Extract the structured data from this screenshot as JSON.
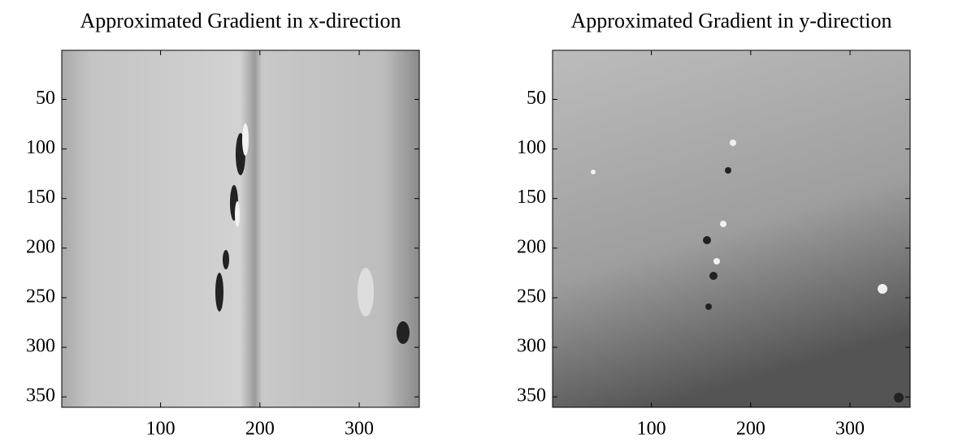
{
  "chart_data": [
    {
      "type": "image",
      "title": "Approximated Gradient in x-direction",
      "xlim": [
        0.5,
        360.5
      ],
      "ylim": [
        0.5,
        360.5
      ],
      "y_reversed": true,
      "xticks": [
        100,
        200,
        300
      ],
      "yticks": [
        50,
        100,
        150,
        200,
        250,
        300,
        350
      ]
    },
    {
      "type": "image",
      "title": "Approximated Gradient in y-direction",
      "xlim": [
        0.5,
        360.5
      ],
      "ylim": [
        0.5,
        360.5
      ],
      "y_reversed": true,
      "xticks": [
        100,
        200,
        300
      ],
      "yticks": [
        50,
        100,
        150,
        200,
        250,
        300,
        350
      ]
    }
  ]
}
